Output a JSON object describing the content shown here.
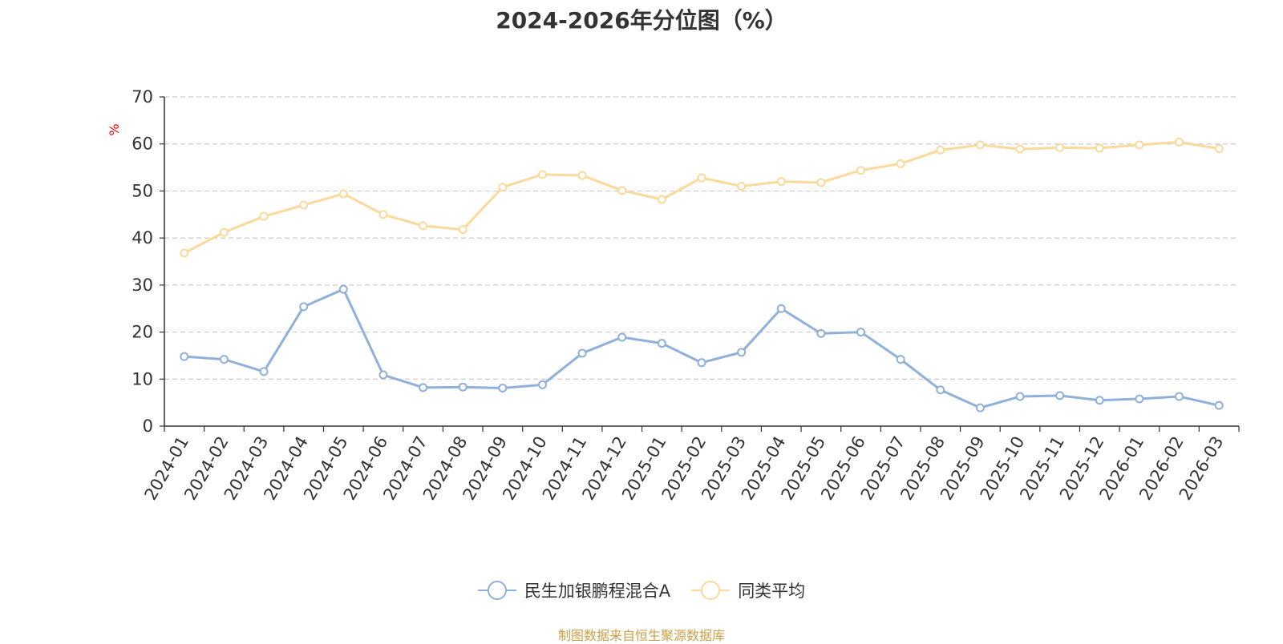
{
  "chart_data": {
    "type": "line",
    "title": "2024-2026年分位图（%）",
    "ylabel": "%",
    "xlabel": "",
    "ylim": [
      0,
      70
    ],
    "yticks": [
      0,
      10,
      20,
      30,
      40,
      50,
      60,
      70
    ],
    "grid": true,
    "legend_position": "bottom",
    "categories": [
      "2024-01",
      "2024-02",
      "2024-03",
      "2024-04",
      "2024-05",
      "2024-06",
      "2024-07",
      "2024-08",
      "2024-09",
      "2024-10",
      "2024-11",
      "2024-12",
      "2025-01",
      "2025-02",
      "2025-03",
      "2025-04",
      "2025-05",
      "2025-06",
      "2025-07",
      "2025-08",
      "2025-09",
      "2025-10",
      "2025-11",
      "2025-12",
      "2026-01",
      "2026-02",
      "2026-03"
    ],
    "series": [
      {
        "name": "民生加银鹏程混合A",
        "color": "#8fb0da",
        "values": [
          14.8,
          14.2,
          11.6,
          25.4,
          29.1,
          10.9,
          8.2,
          8.3,
          8.1,
          8.8,
          15.5,
          18.9,
          17.6,
          13.5,
          15.7,
          25.0,
          19.7,
          20.0,
          14.2,
          7.7,
          3.9,
          6.3,
          6.5,
          5.5,
          5.8,
          6.3,
          4.4
        ]
      },
      {
        "name": "同类平均",
        "color": "#fbd99b",
        "values": [
          36.8,
          41.2,
          44.6,
          47.0,
          49.4,
          45.0,
          42.6,
          41.8,
          50.8,
          53.5,
          53.3,
          50.1,
          48.2,
          52.8,
          51.0,
          52.0,
          51.8,
          54.4,
          55.8,
          58.7,
          59.8,
          58.9,
          59.2,
          59.1,
          59.8,
          60.4,
          59.0
        ]
      }
    ]
  },
  "source_text": "制图数据来自恒生聚源数据库"
}
